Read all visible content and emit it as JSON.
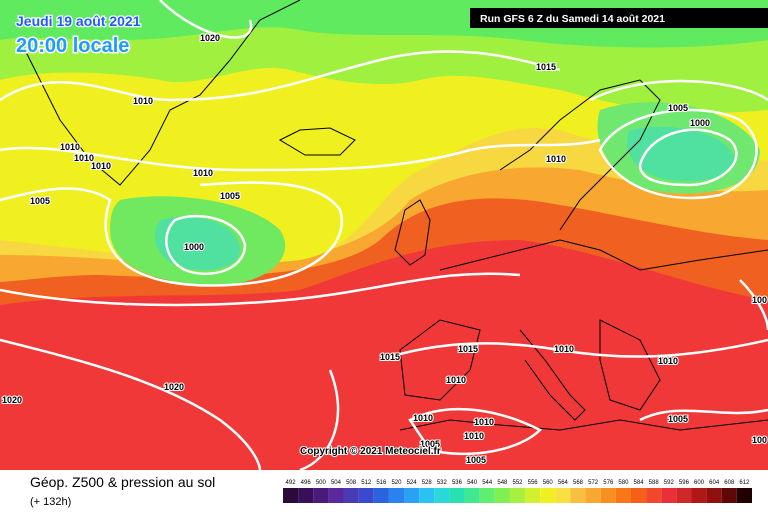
{
  "header": {
    "date": "Jeudi 19 août 2021",
    "time": "20:00 locale",
    "run": "Run GFS 6 Z du Samedi 14 août 2021"
  },
  "isobar_labels": [
    "1020",
    "1015",
    "1010",
    "1005",
    "1000",
    "1010",
    "1010",
    "1010",
    "1010",
    "1010",
    "1005",
    "1005",
    "1000",
    "100",
    "1015",
    "1015",
    "1010",
    "1010",
    "1010",
    "1020",
    "1020",
    "1010",
    "1010",
    "1005",
    "1005",
    "1010",
    "1005",
    "100"
  ],
  "copyright": "Copyright © 2021 Meteociel.fr",
  "footer": {
    "title": "Géop. Z500 & pression au sol",
    "lead": "(+ 132h)"
  },
  "scale": {
    "labels": [
      492,
      496,
      500,
      504,
      508,
      512,
      516,
      520,
      524,
      528,
      532,
      536,
      540,
      544,
      548,
      552,
      556,
      560,
      564,
      568,
      572,
      576,
      580,
      584,
      588,
      592,
      596,
      600,
      604,
      608,
      612
    ],
    "colors": [
      "#2a0a3a",
      "#3a0f5a",
      "#4a1a7a",
      "#5a2a9a",
      "#4a3ab4",
      "#3a4ace",
      "#2a62e0",
      "#2a82ee",
      "#2aa2f4",
      "#2ac2f0",
      "#2ad8d8",
      "#2ae0b0",
      "#40e890",
      "#60ee70",
      "#80f050",
      "#a8f040",
      "#d0f030",
      "#f0f020",
      "#f8e040",
      "#f8c040",
      "#f8a830",
      "#f89020",
      "#f87818",
      "#f46018",
      "#f04828",
      "#e83038",
      "#d02828",
      "#b01818",
      "#901010",
      "#600808",
      "#200000"
    ]
  }
}
